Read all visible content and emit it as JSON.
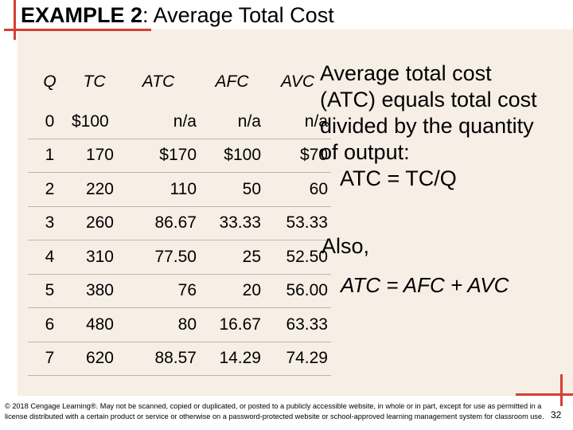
{
  "title": {
    "bold": "EXAMPLE 2",
    "rest": ":  Average Total Cost"
  },
  "table": {
    "headers": [
      "Q",
      "TC",
      "ATC",
      "AFC",
      "AVC"
    ],
    "rows": [
      [
        "0",
        "$100",
        "n/a",
        "n/a",
        "n/a"
      ],
      [
        "1",
        "170",
        "$170",
        "$100",
        "$70"
      ],
      [
        "2",
        "220",
        "110",
        "50",
        "60"
      ],
      [
        "3",
        "260",
        "86.67",
        "33.33",
        "53.33"
      ],
      [
        "4",
        "310",
        "77.50",
        "25",
        "52.50"
      ],
      [
        "5",
        "380",
        "76",
        "20",
        "56.00"
      ],
      [
        "6",
        "480",
        "80",
        "16.67",
        "63.33"
      ],
      [
        "7",
        "620",
        "88.57",
        "14.29",
        "74.29"
      ]
    ]
  },
  "explanation": {
    "line1": "Average total cost",
    "line2": "(ATC) equals total cost",
    "line3": "divided by the quantity",
    "line4": "of output:",
    "formula": "ATC = TC/Q"
  },
  "also": "Also,",
  "identity": "ATC = AFC + AVC",
  "copyright": "© 2018 Cengage Learning®. May not be scanned, copied or duplicated, or posted to a publicly accessible website, in whole or in part, except for use as permitted in a license distributed with a certain product or service or otherwise on a password-protected website or school-approved learning management system for classroom use.",
  "page_number": "32",
  "colors": {
    "accent": "#d43f33",
    "background": "#f7eee5"
  }
}
